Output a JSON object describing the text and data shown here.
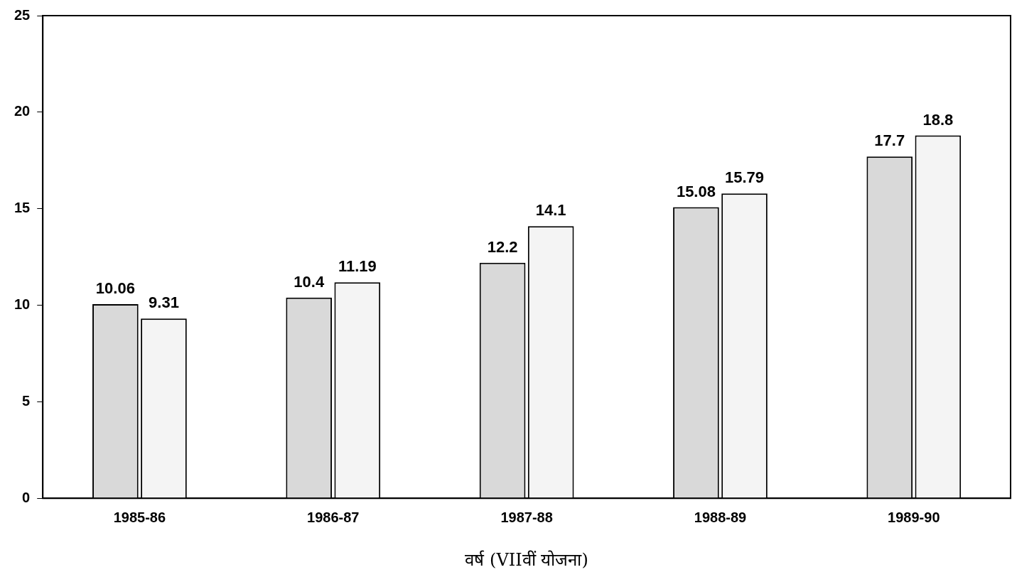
{
  "chart_data": {
    "type": "bar",
    "xlabel": "वर्ष (VIIवीं योजना)",
    "categories": [
      "1985-86",
      "1986-87",
      "1987-88",
      "1988-89",
      "1989-90"
    ],
    "series": [
      {
        "color": "#d9d9d9",
        "values": [
          10.06,
          10.4,
          12.2,
          15.08,
          17.7
        ]
      },
      {
        "color": "#f4f4f4",
        "values": [
          9.31,
          11.19,
          14.1,
          15.79,
          18.8
        ]
      }
    ],
    "ylim": [
      0,
      25
    ],
    "yticks": [
      0,
      5,
      10,
      15,
      20,
      25
    ],
    "grid": false,
    "legend": false,
    "data_labels": true
  }
}
